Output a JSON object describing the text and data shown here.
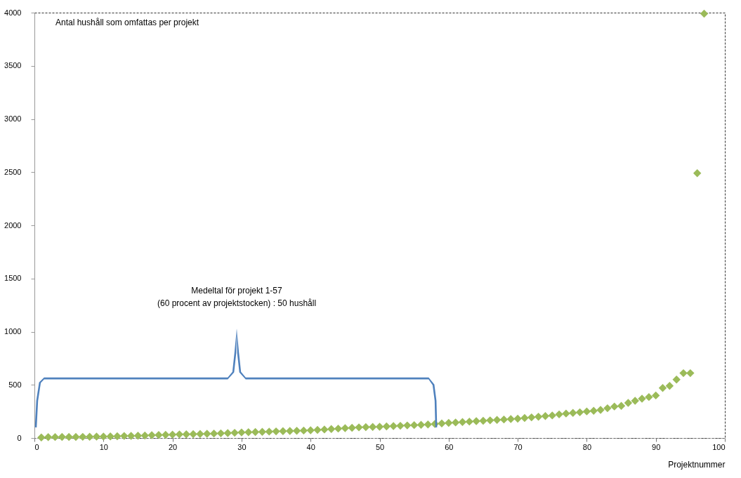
{
  "chart_data": {
    "type": "scatter",
    "title": "Antal hushåll som omfattas per projekt",
    "xlabel": "Projektnummer",
    "annotations": [
      "Medeltal för projekt 1-57",
      "(60 procent av projektstocken) : 50 hushåll"
    ],
    "x": [
      1,
      2,
      3,
      4,
      5,
      6,
      7,
      8,
      9,
      10,
      11,
      12,
      13,
      14,
      15,
      16,
      17,
      18,
      19,
      20,
      21,
      22,
      23,
      24,
      25,
      26,
      27,
      28,
      29,
      30,
      31,
      32,
      33,
      34,
      35,
      36,
      37,
      38,
      39,
      40,
      41,
      42,
      43,
      44,
      45,
      46,
      47,
      48,
      49,
      50,
      51,
      52,
      53,
      54,
      55,
      56,
      57,
      58,
      59,
      60,
      61,
      62,
      63,
      64,
      65,
      66,
      67,
      68,
      69,
      70,
      71,
      72,
      73,
      74,
      75,
      76,
      77,
      78,
      79,
      80,
      81,
      82,
      83,
      84,
      85,
      86,
      87,
      88,
      89,
      90,
      91,
      92,
      93,
      94,
      95,
      96,
      97
    ],
    "series": [
      {
        "color": "#9bbb59",
        "values": [
          5,
          8,
          9,
          10,
          10,
          10,
          11,
          12,
          13,
          14,
          15,
          17,
          19,
          20,
          21,
          23,
          26,
          28,
          30,
          32,
          34,
          35,
          36,
          38,
          40,
          42,
          44,
          46,
          49,
          52,
          54,
          56,
          58,
          60,
          62,
          64,
          66,
          68,
          70,
          73,
          76,
          80,
          84,
          88,
          92,
          96,
          100,
          102,
          104,
          106,
          109,
          112,
          115,
          118,
          121,
          124,
          127,
          132,
          137,
          142,
          146,
          150,
          154,
          158,
          162,
          166,
          170,
          174,
          178,
          182,
          188,
          194,
          200,
          206,
          212,
          222,
          230,
          236,
          242,
          250,
          256,
          264,
          280,
          296,
          302,
          330,
          350,
          370,
          385,
          400,
          470,
          490,
          550,
          610,
          610,
          2490,
          3990
        ]
      }
    ],
    "marker": "diamond",
    "xlim": [
      0,
      100
    ],
    "ylim": [
      0,
      4000
    ],
    "xticks": [
      0,
      10,
      20,
      30,
      40,
      50,
      60,
      70,
      80,
      90,
      100
    ],
    "yticks": [
      0,
      500,
      1000,
      1500,
      2000,
      2500,
      3000,
      3500,
      4000
    ],
    "grid": false
  }
}
